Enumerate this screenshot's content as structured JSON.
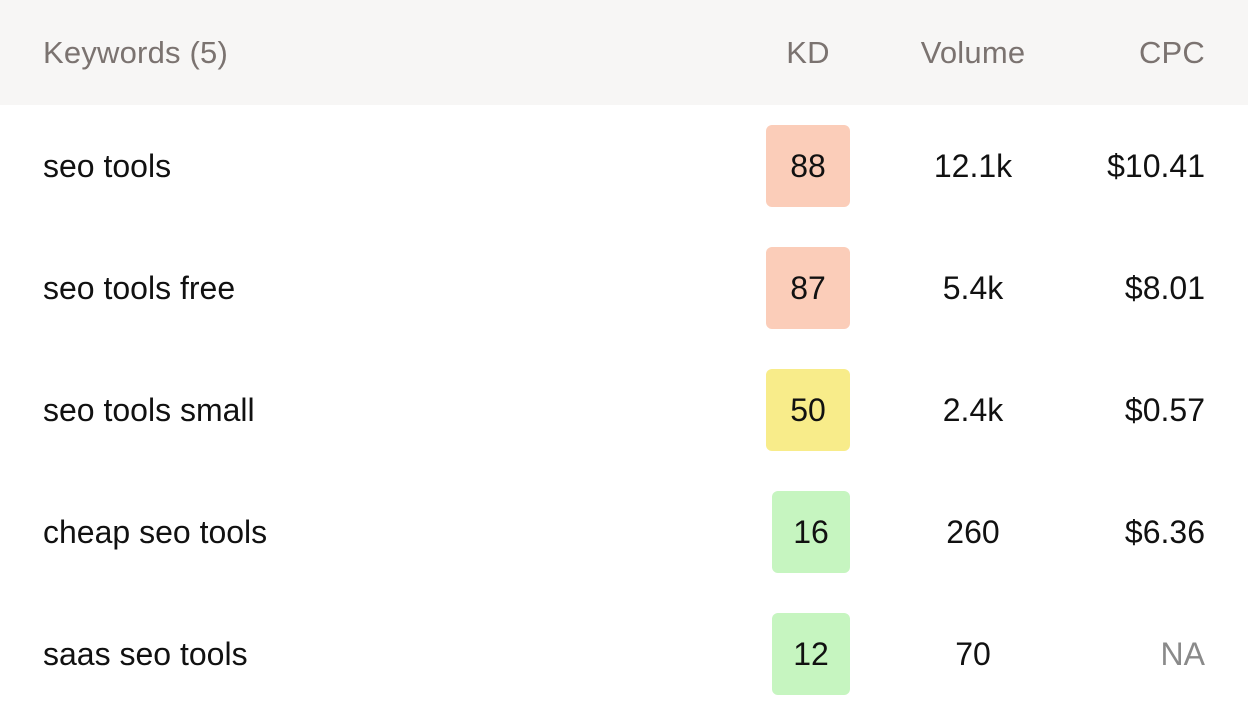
{
  "table": {
    "headers": {
      "keyword": "Keywords (5)",
      "kd": "KD",
      "volume": "Volume",
      "cpc": "CPC"
    },
    "rows": [
      {
        "keyword": "seo tools",
        "kd": "88",
        "kd_color": "#fbcdb9",
        "volume": "12.1k",
        "cpc": "$10.41"
      },
      {
        "keyword": "seo tools free",
        "kd": "87",
        "kd_color": "#fbcdb9",
        "volume": "5.4k",
        "cpc": "$8.01"
      },
      {
        "keyword": "seo tools small",
        "kd": "50",
        "kd_color": "#f8ec8a",
        "volume": "2.4k",
        "cpc": "$0.57"
      },
      {
        "keyword": "cheap seo tools",
        "kd": "16",
        "kd_color": "#c6f5c0",
        "volume": "260",
        "cpc": "$6.36"
      },
      {
        "keyword": "saas seo tools",
        "kd": "12",
        "kd_color": "#c6f5c0",
        "volume": "70",
        "cpc": "NA"
      }
    ]
  },
  "colors": {
    "header_bg": "#f7f6f5",
    "header_text": "#7b7370",
    "na_text": "#8a8a8a"
  }
}
